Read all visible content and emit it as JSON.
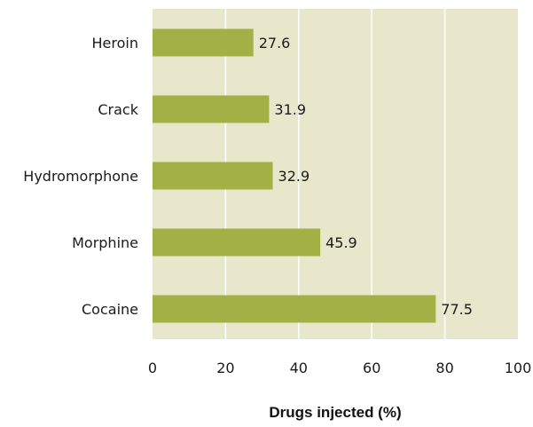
{
  "chart_data": {
    "type": "bar",
    "orientation": "horizontal",
    "categories": [
      "Heroin",
      "Crack",
      "Hydromorphone",
      "Morphine",
      "Cocaine"
    ],
    "values": [
      27.6,
      31.9,
      32.9,
      45.9,
      77.5
    ],
    "value_labels": [
      "27.6",
      "31.9",
      "32.9",
      "45.9",
      "77.5"
    ],
    "title": "",
    "xlabel": "Drugs injected (%)",
    "ylabel": "",
    "xlim": [
      0,
      100
    ],
    "xticks": [
      "0",
      "20",
      "40",
      "60",
      "80",
      "100"
    ],
    "grid": "vertical",
    "legend": "none",
    "colors": {
      "bar": "#a2b045",
      "plot_background": "#e8e7cc",
      "gridline": "#ffffff"
    }
  }
}
